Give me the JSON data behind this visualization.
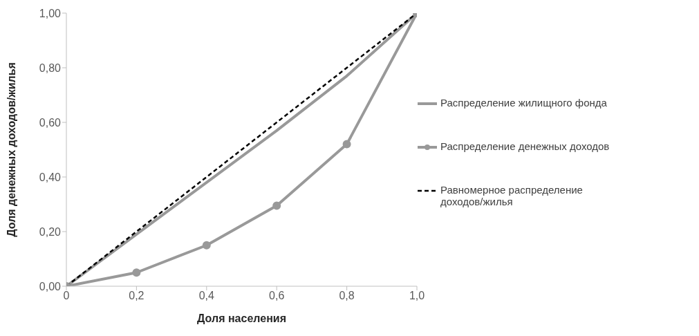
{
  "chart_data": {
    "type": "line",
    "xlabel": "Доля населения",
    "ylabel": "Доля денежных доходов/жилья",
    "x": [
      0,
      0.2,
      0.4,
      0.6,
      0.8,
      1
    ],
    "series": [
      {
        "name": "Распределение жилищного фонда",
        "color": "#999999",
        "values": [
          0,
          0.19,
          0.38,
          0.57,
          0.77,
          1
        ],
        "marker": "none",
        "line_style": "solid"
      },
      {
        "name": "Распределение денежных доходов",
        "color": "#999999",
        "values": [
          0,
          0.05,
          0.15,
          0.295,
          0.52,
          1
        ],
        "marker": "circle",
        "line_style": "solid"
      },
      {
        "name": "Равномерное распределение доходов/жилья",
        "color": "#000000",
        "values": [
          0,
          0.2,
          0.4,
          0.6,
          0.8,
          1
        ],
        "marker": "none",
        "line_style": "dashed"
      }
    ],
    "xlim": [
      0,
      1
    ],
    "xticks": [
      0,
      {
        "value": 0.2,
        "label": "0,2"
      },
      {
        "value": 0.4,
        "label": "0,4"
      },
      {
        "value": 0.6,
        "label": "0,6"
      },
      {
        "value": 0.8,
        "label": "0,8"
      },
      {
        "value": 1,
        "label": "1,0"
      }
    ],
    "ylim": [
      0,
      1
    ],
    "yticks": [
      {
        "value": 0,
        "label": "0,00"
      },
      {
        "value": 0.2,
        "label": "0,20"
      },
      {
        "value": 0.4,
        "label": "0,40"
      },
      {
        "value": 0.6,
        "label": "0,60"
      },
      {
        "value": 0.8,
        "label": "0,80"
      },
      {
        "value": 1,
        "label": "1,00"
      }
    ],
    "grid": false,
    "legend": "right"
  }
}
